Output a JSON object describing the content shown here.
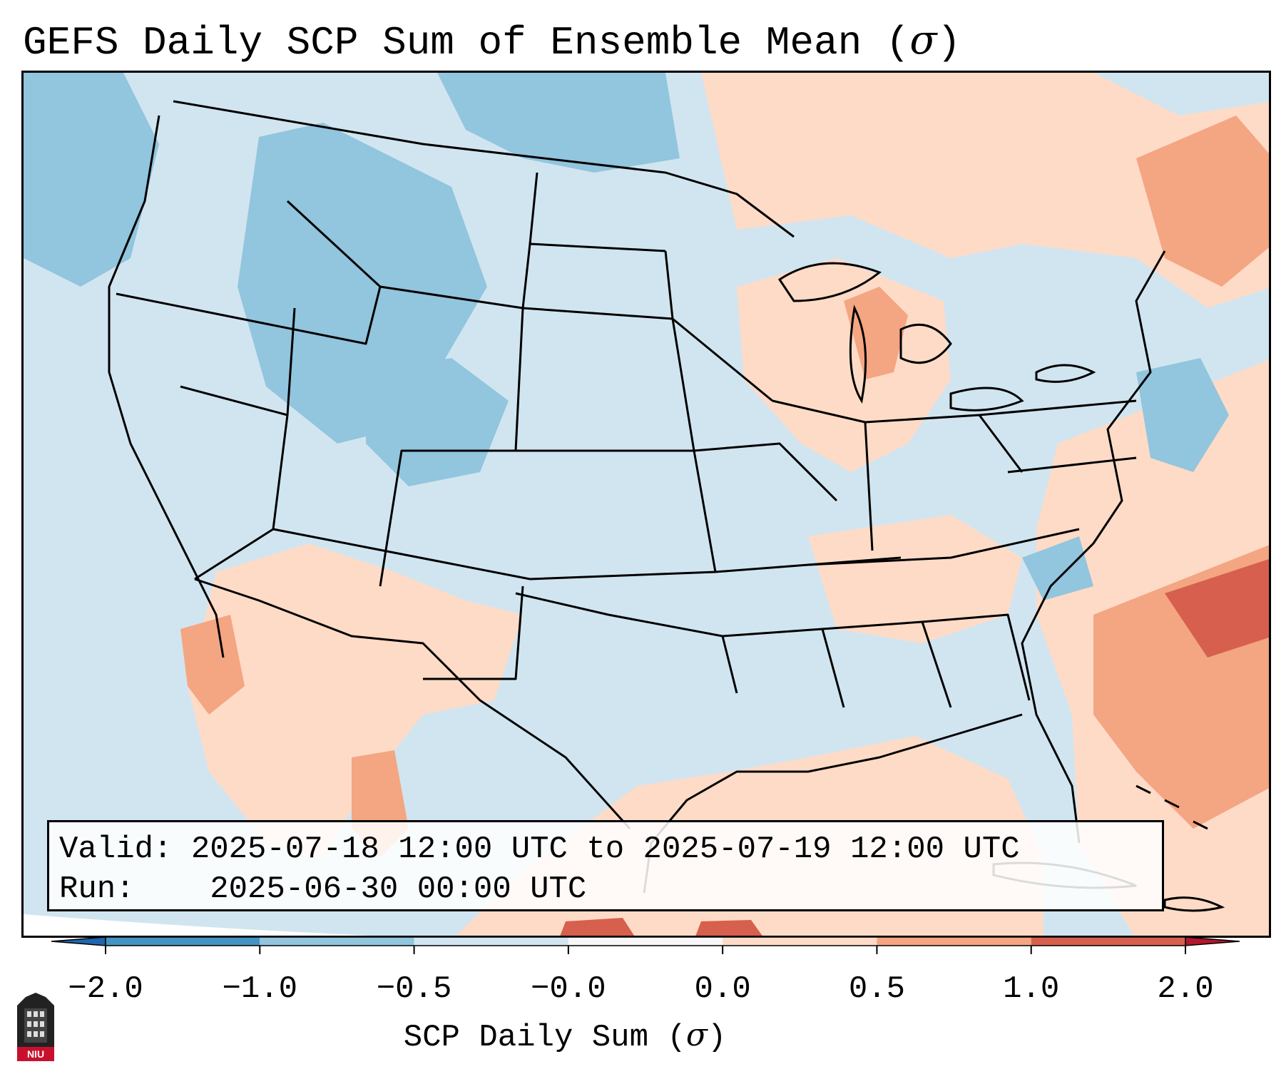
{
  "title": {
    "text": "GEFS Daily SCP Sum of Ensemble Mean (",
    "symbol": "σ",
    "suffix": ")"
  },
  "info": {
    "valid_label": "Valid:",
    "valid_value": "2025-07-18 12:00 UTC to 2025-07-19 12:00 UTC",
    "run_label": "Run:",
    "run_value": "2025-06-30 00:00 UTC"
  },
  "colorbar": {
    "label_text": "SCP Daily Sum (",
    "label_symbol": "σ",
    "label_suffix": ")",
    "ticks": [
      "−2.0",
      "−1.0",
      "−0.5",
      "−0.0",
      "0.0",
      "0.5",
      "1.0",
      "2.0"
    ],
    "bins": [
      {
        "from": -2.0,
        "to": -1.0,
        "color": "#4393c3"
      },
      {
        "from": -1.0,
        "to": -0.5,
        "color": "#92c5de"
      },
      {
        "from": -0.5,
        "to": -0.0,
        "color": "#d1e5f0"
      },
      {
        "from": -0.0,
        "to": 0.0,
        "color": "#f7f7f7"
      },
      {
        "from": 0.0,
        "to": 0.5,
        "color": "#fddbc7"
      },
      {
        "from": 0.5,
        "to": 1.0,
        "color": "#f4a582"
      },
      {
        "from": 1.0,
        "to": 2.0,
        "color": "#d6604d"
      }
    ],
    "under_color": "#2166ac",
    "over_color": "#b2182b"
  },
  "logo": {
    "text": "NIU"
  },
  "colors": {
    "background": "#ffffff",
    "state_lines": "#000000"
  }
}
